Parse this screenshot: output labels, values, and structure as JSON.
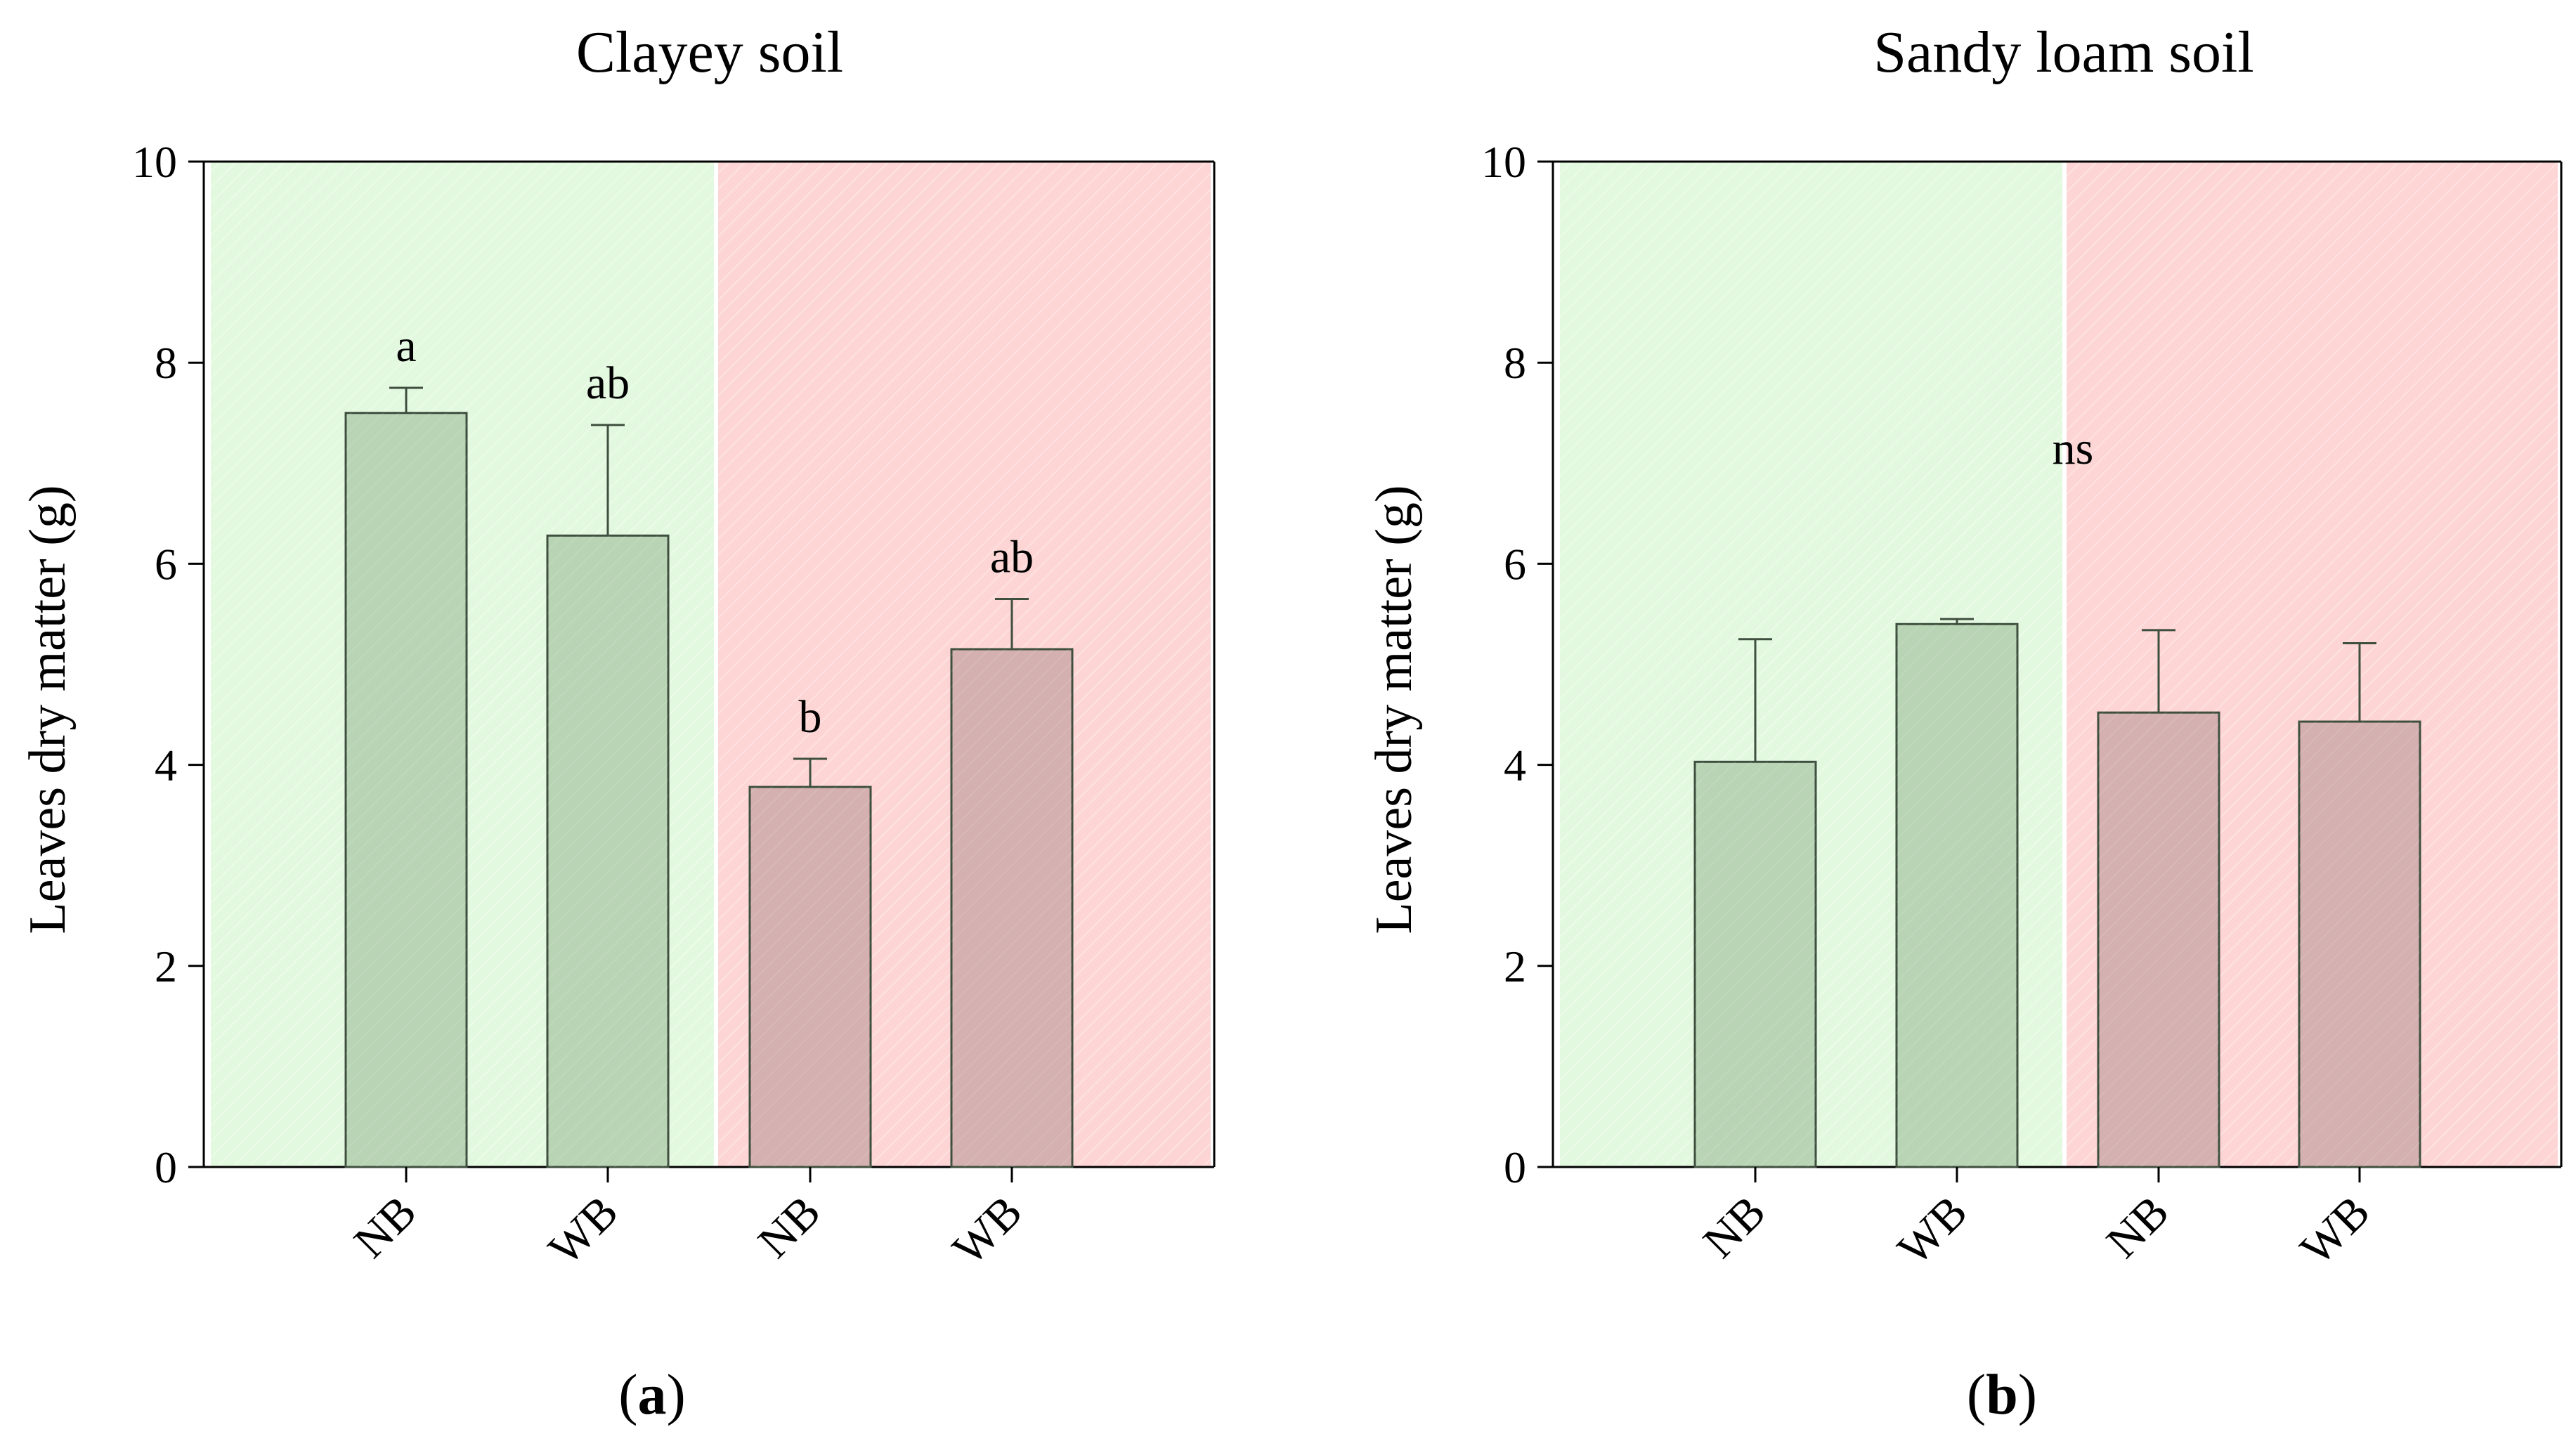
{
  "chart_data": [
    {
      "type": "bar",
      "title": "Clayey soil",
      "xlabel": "",
      "ylabel": "Leaves dry matter (g)",
      "ylim": [
        0,
        10
      ],
      "yticks": [
        0,
        2,
        4,
        6,
        8,
        10
      ],
      "categories": [
        "NB",
        "WB",
        "NB",
        "WB"
      ],
      "values": [
        7.5,
        6.28,
        3.78,
        5.15
      ],
      "errors": [
        0.25,
        1.1,
        0.28,
        0.5
      ],
      "groups": [
        "green",
        "green",
        "red",
        "red"
      ],
      "significance": [
        "a",
        "ab",
        "b",
        "ab"
      ],
      "panel_label": {
        "open": "(",
        "letter": "a",
        "close": ")"
      },
      "colors": {
        "green_background": "#e3f9df",
        "red_background": "#fdd5d5",
        "green_bar": "#b8d4b4",
        "red_bar": "#d4b0b0",
        "bar_edge": "#3f4f3f"
      }
    },
    {
      "type": "bar",
      "title": "Sandy loam soil",
      "xlabel": "",
      "ylabel": "Leaves dry matter (g)",
      "ylim": [
        0,
        10
      ],
      "yticks": [
        0,
        2,
        4,
        6,
        8,
        10
      ],
      "categories": [
        "NB",
        "WB",
        "NB",
        "WB"
      ],
      "values": [
        4.03,
        5.4,
        4.52,
        4.43
      ],
      "errors": [
        1.22,
        0.05,
        0.82,
        0.78
      ],
      "groups": [
        "green",
        "green",
        "red",
        "red"
      ],
      "significance_label": "ns",
      "panel_label": {
        "open": "(",
        "letter": "b",
        "close": ")"
      },
      "colors": {
        "green_background": "#e3f9df",
        "red_background": "#fdd5d5",
        "green_bar": "#b8d4b4",
        "red_bar": "#d4b0b0",
        "bar_edge": "#3f4f3f"
      }
    }
  ]
}
